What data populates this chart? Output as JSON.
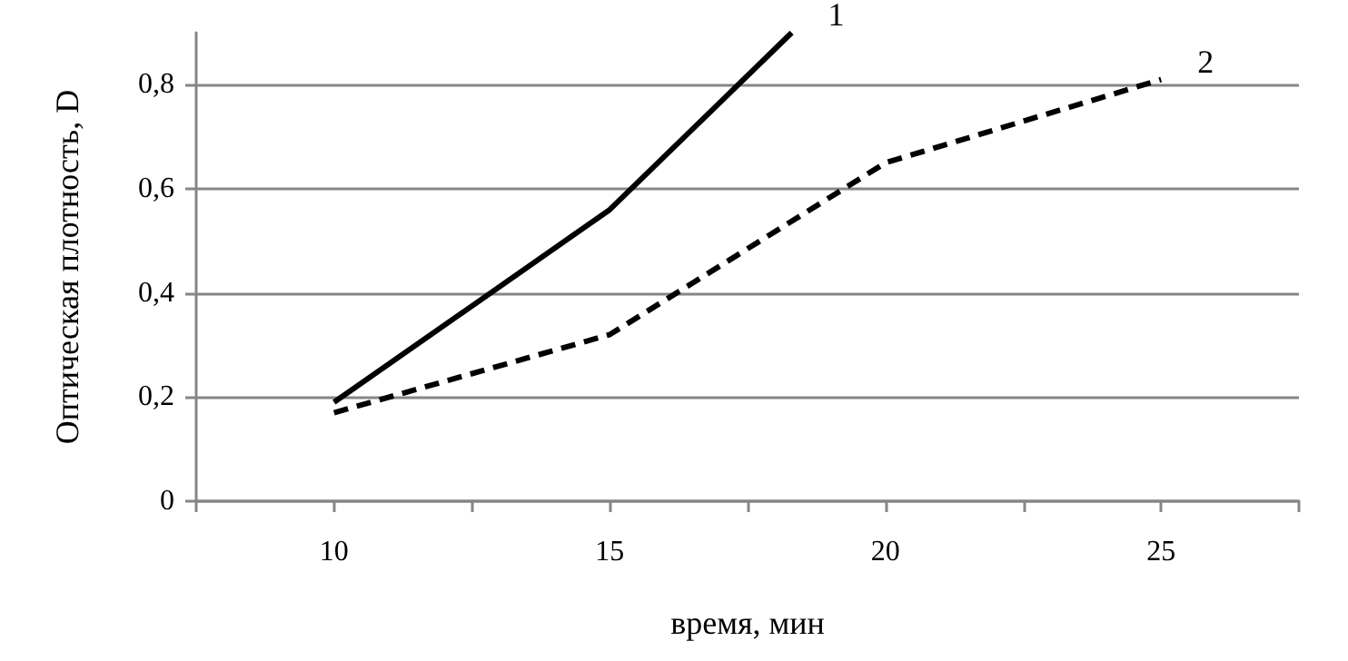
{
  "chart_data": {
    "type": "line",
    "xlabel": "время, мин",
    "ylabel": "Оптическая плотность, D",
    "xlim": [
      7.5,
      27.5
    ],
    "xticks": [
      {
        "value": 7.5,
        "label": null
      },
      {
        "value": 10,
        "label": "10"
      },
      {
        "value": 12.5,
        "label": null
      },
      {
        "value": 15,
        "label": "15"
      },
      {
        "value": 17.5,
        "label": null
      },
      {
        "value": 20,
        "label": "20"
      },
      {
        "value": 22.5,
        "label": null
      },
      {
        "value": 25,
        "label": "25"
      },
      {
        "value": 27.5,
        "label": null
      }
    ],
    "ylim": [
      0,
      0.9
    ],
    "yticks": [
      {
        "value": 0,
        "label": "0"
      },
      {
        "value": 0.2,
        "label": "0,2"
      },
      {
        "value": 0.4,
        "label": "0,4"
      },
      {
        "value": 0.6,
        "label": "0,6"
      },
      {
        "value": 0.8,
        "label": "0,8"
      }
    ],
    "grid": "y",
    "legend": false,
    "marker": "none",
    "series": [
      {
        "name": "1",
        "color": "#000000",
        "line_style": "solid",
        "x": [
          10,
          15,
          18.3
        ],
        "values": [
          0.19,
          0.56,
          0.9
        ]
      },
      {
        "name": "2",
        "color": "#000000",
        "line_style": "dashed",
        "x": [
          10,
          15,
          20,
          25
        ],
        "values": [
          0.17,
          0.32,
          0.65,
          0.81
        ]
      }
    ]
  }
}
